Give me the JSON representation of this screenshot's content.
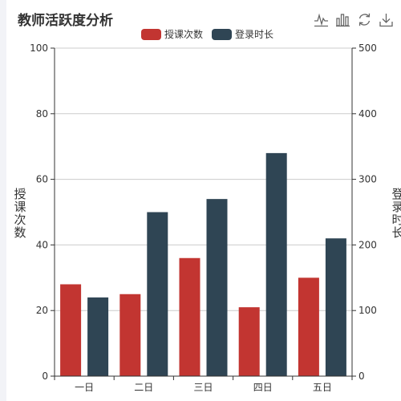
{
  "title": "教师活跃度分析",
  "toolbox": {
    "line_icon": "line-chart-icon",
    "bar_icon": "bar-chart-icon",
    "restore_icon": "restore-icon",
    "save_icon": "download-icon"
  },
  "colors": {
    "series_1": "#c23531",
    "series_2": "#2f4554",
    "grid": "#cccccc",
    "axis": "#333333",
    "sidebar": "#f2f3f7"
  },
  "chart_data": {
    "type": "bar",
    "categories": [
      "一日",
      "二日",
      "三日",
      "四日",
      "五日"
    ],
    "series": [
      {
        "name": "授课次数",
        "axis": "left",
        "values": [
          28,
          25,
          36,
          21,
          30
        ]
      },
      {
        "name": "登录时长",
        "axis": "right",
        "values": [
          120,
          250,
          270,
          340,
          210
        ]
      }
    ],
    "y_left": {
      "label_chars": [
        "授",
        "课",
        "次",
        "数"
      ],
      "min": 0,
      "max": 100,
      "ticks": [
        0,
        20,
        40,
        60,
        80,
        100
      ]
    },
    "y_right": {
      "label_chars": [
        "登",
        "录",
        "时",
        "长"
      ],
      "min": 0,
      "max": 500,
      "ticks": [
        0,
        100,
        200,
        300,
        400,
        500
      ]
    },
    "grid": true,
    "legend_position": "top-center"
  }
}
